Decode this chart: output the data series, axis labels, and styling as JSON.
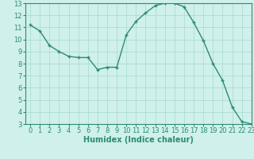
{
  "x": [
    0,
    1,
    2,
    3,
    4,
    5,
    6,
    7,
    8,
    9,
    10,
    11,
    12,
    13,
    14,
    15,
    16,
    17,
    18,
    19,
    20,
    21,
    22,
    23
  ],
  "y": [
    11.2,
    10.7,
    9.5,
    9.0,
    8.6,
    8.5,
    8.5,
    7.5,
    7.7,
    7.7,
    10.4,
    11.5,
    12.2,
    12.8,
    13.0,
    13.0,
    12.7,
    11.4,
    9.9,
    8.0,
    6.6,
    4.4,
    3.2,
    3.0
  ],
  "line_color": "#2e8b73",
  "marker": "+",
  "marker_size": 3,
  "marker_lw": 1.0,
  "xlabel": "Humidex (Indice chaleur)",
  "ylim": [
    3,
    13
  ],
  "xlim": [
    -0.5,
    23
  ],
  "yticks": [
    3,
    4,
    5,
    6,
    7,
    8,
    9,
    10,
    11,
    12,
    13
  ],
  "xticks": [
    0,
    1,
    2,
    3,
    4,
    5,
    6,
    7,
    8,
    9,
    10,
    11,
    12,
    13,
    14,
    15,
    16,
    17,
    18,
    19,
    20,
    21,
    22,
    23
  ],
  "bg_color": "#cff0eb",
  "grid_color": "#a8d8d2",
  "line_tick_color": "#2e8b73",
  "xlabel_fontsize": 7,
  "tick_fontsize": 6,
  "linewidth": 1.0
}
